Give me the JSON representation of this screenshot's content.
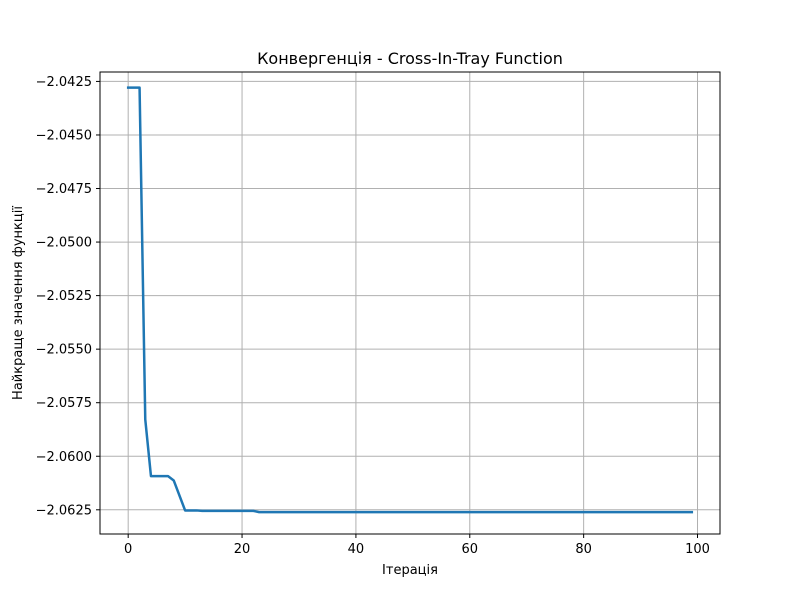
{
  "chart_data": {
    "type": "line",
    "title": "Конвергенція - Cross-In-Tray Function",
    "xlabel": "Ітерація",
    "ylabel": "Найкраще значення функції",
    "xlim": [
      -4.95,
      103.95
    ],
    "ylim": [
      -2.06363,
      -2.04206
    ],
    "grid": true,
    "legend": "none",
    "x_ticks": [
      0,
      20,
      40,
      60,
      80,
      100
    ],
    "x_tick_labels": [
      "0",
      "20",
      "40",
      "60",
      "80",
      "100"
    ],
    "y_ticks": [
      -2.0425,
      -2.045,
      -2.0475,
      -2.05,
      -2.0525,
      -2.055,
      -2.0575,
      -2.06,
      -2.0625
    ],
    "y_tick_labels": [
      "−2.0425",
      "−2.0450",
      "−2.0475",
      "−2.0500",
      "−2.0525",
      "−2.0550",
      "−2.0575",
      "−2.0600",
      "−2.0625"
    ],
    "series": [
      {
        "color": "#1f77b4",
        "x": [
          0,
          1,
          2,
          3,
          4,
          5,
          6,
          7,
          8,
          9,
          10,
          11,
          12,
          13,
          14,
          15,
          16,
          17,
          18,
          19,
          20,
          21,
          22,
          23,
          24,
          25,
          26,
          27,
          28,
          29,
          30,
          31,
          32,
          33,
          34,
          35,
          36,
          37,
          38,
          39,
          40,
          41,
          42,
          43,
          44,
          45,
          46,
          47,
          48,
          49,
          50,
          51,
          52,
          53,
          54,
          55,
          56,
          57,
          58,
          59,
          60,
          61,
          62,
          63,
          64,
          65,
          66,
          67,
          68,
          69,
          70,
          71,
          72,
          73,
          74,
          75,
          76,
          77,
          78,
          79,
          80,
          81,
          82,
          83,
          84,
          85,
          86,
          87,
          88,
          89,
          90,
          91,
          92,
          93,
          94,
          95,
          96,
          97,
          98,
          99
        ],
        "y": [
          -2.04279,
          -2.04279,
          -2.04279,
          -2.05828,
          -2.06093,
          -2.06093,
          -2.06093,
          -2.06093,
          -2.06113,
          -2.06183,
          -2.06253,
          -2.06253,
          -2.06253,
          -2.06255,
          -2.06255,
          -2.06255,
          -2.06255,
          -2.06255,
          -2.06255,
          -2.06255,
          -2.06255,
          -2.06255,
          -2.06255,
          -2.06261,
          -2.06261,
          -2.06261,
          -2.06261,
          -2.06261,
          -2.06261,
          -2.06261,
          -2.06261,
          -2.06261,
          -2.06261,
          -2.06261,
          -2.06261,
          -2.06261,
          -2.06261,
          -2.06261,
          -2.06261,
          -2.06261,
          -2.06261,
          -2.06261,
          -2.06261,
          -2.06261,
          -2.06261,
          -2.06261,
          -2.06261,
          -2.06261,
          -2.06261,
          -2.06261,
          -2.06261,
          -2.06261,
          -2.06261,
          -2.06261,
          -2.06261,
          -2.06261,
          -2.06261,
          -2.06261,
          -2.06261,
          -2.06261,
          -2.06261,
          -2.06261,
          -2.06261,
          -2.06261,
          -2.06261,
          -2.06261,
          -2.06261,
          -2.06261,
          -2.06261,
          -2.06261,
          -2.06261,
          -2.06261,
          -2.06261,
          -2.06261,
          -2.06261,
          -2.06261,
          -2.06261,
          -2.06261,
          -2.06261,
          -2.06261,
          -2.06261,
          -2.06261,
          -2.06261,
          -2.06261,
          -2.06261,
          -2.06261,
          -2.06261,
          -2.06261,
          -2.06261,
          -2.06261,
          -2.06261,
          -2.06261,
          -2.06261,
          -2.06261,
          -2.06261,
          -2.06261,
          -2.06261,
          -2.06261,
          -2.06261,
          -2.06261
        ]
      }
    ]
  },
  "colors": {
    "series_line": "#1f77b4",
    "grid": "#b0b0b0",
    "axis": "#000000",
    "background": "#ffffff"
  }
}
